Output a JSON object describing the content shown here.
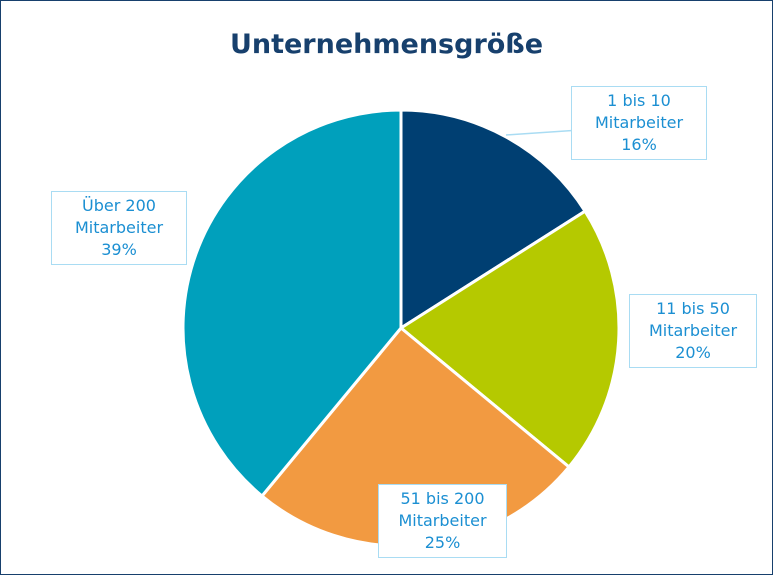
{
  "chart_data": {
    "type": "pie",
    "title": "Unternehmensgröße",
    "categories": [
      "1 bis 10 Mitarbeiter",
      "11 bis 50 Mitarbeiter",
      "51 bis 200 Mitarbeiter",
      "Über 200 Mitarbeiter"
    ],
    "values": [
      16,
      20,
      25,
      39
    ],
    "value_labels": [
      "16%",
      "20%",
      "25%",
      "39%"
    ],
    "colors": [
      "#003f72",
      "#b5c900",
      "#f29a41",
      "#00a0bc"
    ]
  }
}
